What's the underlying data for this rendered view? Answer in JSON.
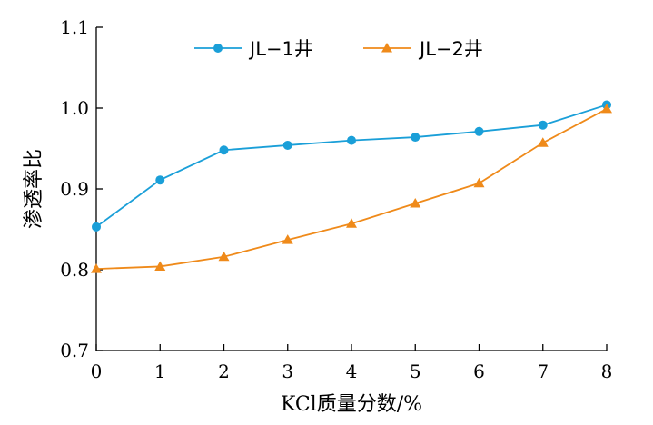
{
  "chart_data": {
    "type": "line",
    "xlabel": "KCl质量分数/%",
    "ylabel": "渗透率比",
    "x": [
      0,
      1,
      2,
      3,
      4,
      5,
      6,
      7,
      8
    ],
    "xlim": [
      0,
      8
    ],
    "ylim": [
      0.7,
      1.1
    ],
    "xticks": [
      "0",
      "1",
      "2",
      "3",
      "4",
      "5",
      "6",
      "7",
      "8"
    ],
    "yticks": [
      "0.7",
      "0.8",
      "0.9",
      "1.0",
      "1.1"
    ],
    "grid": false,
    "legend_position": "top",
    "series": [
      {
        "name": "JL−1井",
        "color": "#1a9fd8",
        "marker": "circle",
        "values": [
          0.853,
          0.911,
          0.948,
          0.954,
          0.96,
          0.964,
          0.971,
          0.979,
          1.004
        ]
      },
      {
        "name": "JL−2井",
        "color": "#ef8a1a",
        "marker": "triangle",
        "values": [
          0.801,
          0.804,
          0.816,
          0.837,
          0.857,
          0.882,
          0.907,
          0.957,
          0.999
        ]
      }
    ]
  }
}
